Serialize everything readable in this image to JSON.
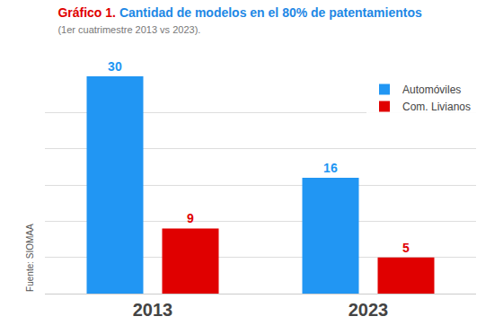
{
  "chart_data": {
    "type": "bar",
    "title": "Gráfico 1. Cantidad de modelos en el 80% de patentamientos",
    "subtitle": "(1er cuatrimestre 2013 vs 2023).",
    "categories": [
      "2013",
      "2023"
    ],
    "series": [
      {
        "name": "Automóviles",
        "color": "#2196f3",
        "values": [
          30,
          16
        ]
      },
      {
        "name": "Com. Livianos",
        "color": "#e00000",
        "values": [
          9,
          5
        ]
      }
    ],
    "ylim": [
      0,
      30
    ],
    "yticks": [
      0,
      5,
      10,
      15,
      20,
      25,
      30
    ],
    "grid": true,
    "legend": "top right",
    "data_labels": true,
    "tick_labels": "x",
    "annotations": [
      "Fuente: SIOMAA"
    ]
  }
}
